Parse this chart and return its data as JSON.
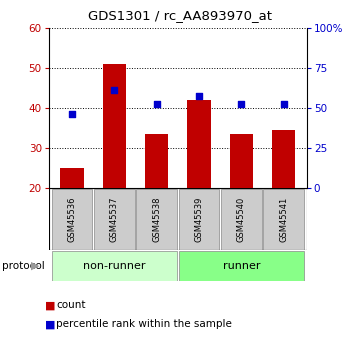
{
  "title": "GDS1301 / rc_AA893970_at",
  "samples": [
    "GSM45536",
    "GSM45537",
    "GSM45538",
    "GSM45539",
    "GSM45540",
    "GSM45541"
  ],
  "bar_values": [
    25,
    51,
    33.5,
    42,
    33.5,
    34.5
  ],
  "scatter_values": [
    38.5,
    44.5,
    41,
    43,
    41,
    41
  ],
  "bar_bottom": 20,
  "ylim_left": [
    20,
    60
  ],
  "ylim_right": [
    0,
    100
  ],
  "yticks_left": [
    20,
    30,
    40,
    50,
    60
  ],
  "yticks_right": [
    0,
    25,
    50,
    75,
    100
  ],
  "ytick_labels_left": [
    "20",
    "30",
    "40",
    "50",
    "60"
  ],
  "ytick_labels_right": [
    "0",
    "25",
    "50",
    "75",
    "100%"
  ],
  "bar_color": "#C00000",
  "scatter_color": "#0000CC",
  "groups": [
    {
      "label": "non-runner",
      "indices": [
        0,
        1,
        2
      ],
      "color": "#CCFFCC"
    },
    {
      "label": "runner",
      "indices": [
        3,
        4,
        5
      ],
      "color": "#88FF88"
    }
  ],
  "protocol_label": "protocol",
  "legend_count_label": "count",
  "legend_percentile_label": "percentile rank within the sample",
  "bar_width": 0.55
}
